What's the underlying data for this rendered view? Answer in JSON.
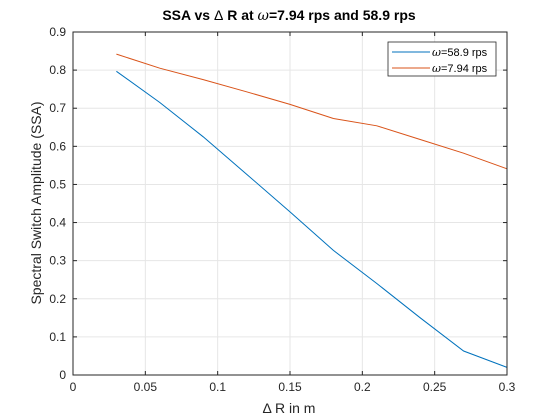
{
  "chart_data": {
    "type": "line",
    "title_parts": [
      "SSA vs ",
      "Δ",
      " R at ",
      "ω",
      "=7.94 rps and 58.9 rps"
    ],
    "xlabel": "Δ R in m",
    "ylabel": "Spectral Switch Amplitude (SSA)",
    "xlim": [
      0,
      0.3
    ],
    "ylim": [
      0,
      0.9
    ],
    "xticks": [
      0,
      0.05,
      0.1,
      0.15,
      0.2,
      0.25,
      0.3
    ],
    "xtick_labels": [
      "0",
      "0.05",
      "0.1",
      "0.15",
      "0.2",
      "0.25",
      "0.3"
    ],
    "yticks": [
      0,
      0.1,
      0.2,
      0.3,
      0.4,
      0.5,
      0.6,
      0.7,
      0.8,
      0.9
    ],
    "ytick_labels": [
      "0",
      "0.1",
      "0.2",
      "0.3",
      "0.4",
      "0.5",
      "0.6",
      "0.7",
      "0.8",
      "0.9"
    ],
    "grid": true,
    "legend_position": "top-right",
    "series": [
      {
        "name": "ω=58.9 rps",
        "name_symbol": "ω",
        "name_rest": "=58.9 rps",
        "color": "#0072BD",
        "x": [
          0.03,
          0.06,
          0.09,
          0.12,
          0.15,
          0.18,
          0.21,
          0.24,
          0.27,
          0.3
        ],
        "y": [
          0.797,
          0.715,
          0.625,
          0.527,
          0.428,
          0.327,
          0.24,
          0.15,
          0.063,
          0.02
        ]
      },
      {
        "name": "ω=7.94 rps",
        "name_symbol": "ω",
        "name_rest": "=7.94 rps",
        "color": "#D95319",
        "x": [
          0.03,
          0.06,
          0.09,
          0.12,
          0.15,
          0.18,
          0.21,
          0.24,
          0.27,
          0.3
        ],
        "y": [
          0.842,
          0.805,
          0.775,
          0.743,
          0.71,
          0.673,
          0.654,
          0.618,
          0.582,
          0.541
        ]
      }
    ]
  }
}
